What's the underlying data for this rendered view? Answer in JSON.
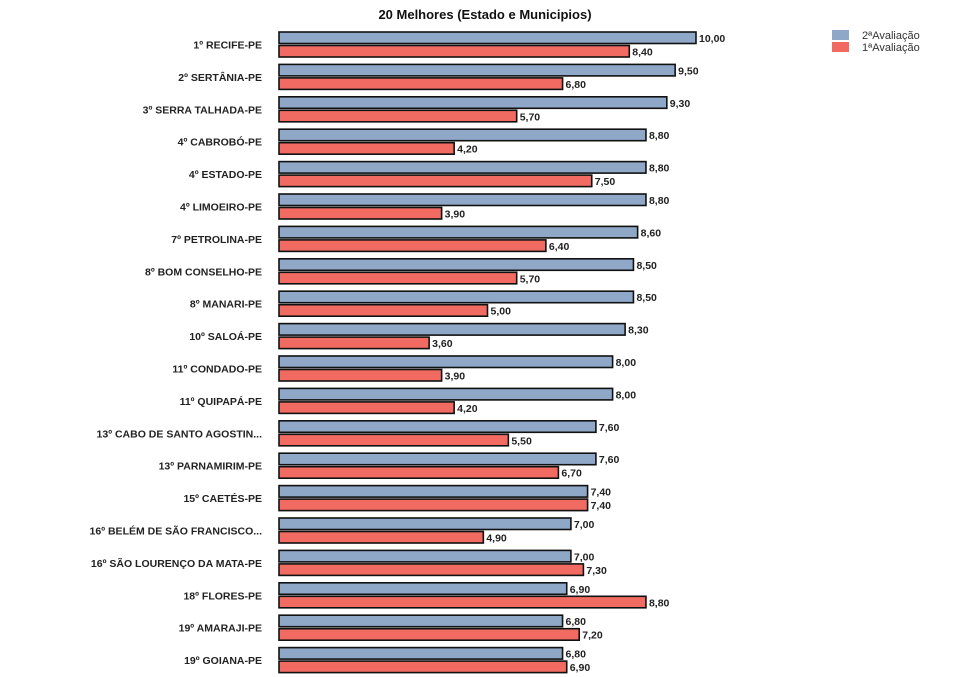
{
  "chart_data": {
    "type": "bar",
    "orientation": "horizontal",
    "title": "20 Melhores (Estado e Municipios)",
    "categories": [
      "1º RECIFE-PE",
      "2º SERTÂNIA-PE",
      "3º SERRA TALHADA-PE",
      "4º CABROBÓ-PE",
      "4º ESTADO-PE",
      "4º LIMOEIRO-PE",
      "7º PETROLINA-PE",
      "8º BOM CONSELHO-PE",
      "8º MANARI-PE",
      "10º SALOÁ-PE",
      "11º CONDADO-PE",
      "11º QUIPAPÁ-PE",
      "13º CABO DE SANTO AGOSTIN...",
      "13º PARNAMIRIM-PE",
      "15º CAETÉS-PE",
      "16º BELÉM DE SÃO FRANCISCO...",
      "16º SÃO LOURENÇO DA MATA-PE",
      "18º FLORES-PE",
      "19º AMARAJI-PE",
      "19º GOIANA-PE"
    ],
    "series": [
      {
        "name": "2ªAvaliação",
        "color": "#8fa8c8",
        "values": [
          10.0,
          9.5,
          9.3,
          8.8,
          8.8,
          8.8,
          8.6,
          8.5,
          8.5,
          8.3,
          8.0,
          8.0,
          7.6,
          7.6,
          7.4,
          7.0,
          7.0,
          6.9,
          6.8,
          6.8
        ],
        "labels": [
          "10,00",
          "9,50",
          "9,30",
          "8,80",
          "8,80",
          "8,80",
          "8,60",
          "8,50",
          "8,50",
          "8,30",
          "8,00",
          "8,00",
          "7,60",
          "7,60",
          "7,40",
          "7,00",
          "7,00",
          "6,90",
          "6,80",
          "6,80"
        ]
      },
      {
        "name": "1ªAvaliação",
        "color": "#f26b62",
        "values": [
          8.4,
          6.8,
          5.7,
          4.2,
          7.5,
          3.9,
          6.4,
          5.7,
          5.0,
          3.6,
          3.9,
          4.2,
          5.5,
          6.7,
          7.4,
          4.9,
          7.3,
          8.8,
          7.2,
          6.9
        ],
        "labels": [
          "8,40",
          "6,80",
          "5,70",
          "4,20",
          "7,50",
          "3,90",
          "6,40",
          "5,70",
          "5,00",
          "3,60",
          "3,90",
          "4,20",
          "5,50",
          "6,70",
          "7,40",
          "4,90",
          "7,30",
          "8,80",
          "7,20",
          "6,90"
        ]
      }
    ],
    "xlim": [
      0,
      10
    ],
    "legend_position": "top-right",
    "grid": false
  }
}
